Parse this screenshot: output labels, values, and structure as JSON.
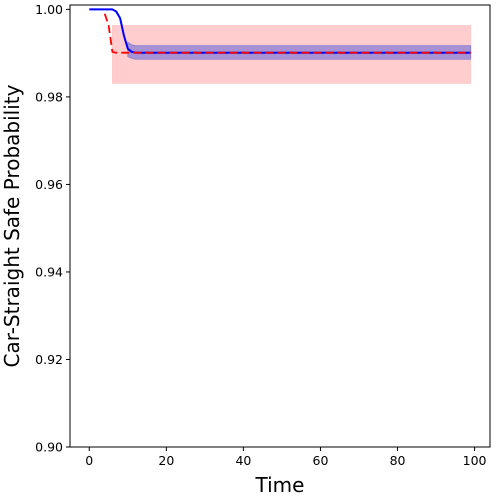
{
  "chart_data": {
    "type": "line",
    "title": "",
    "xlabel": "Time",
    "ylabel": "Car-Straight Safe Probability",
    "xlim": [
      -5,
      104
    ],
    "ylim": [
      0.9,
      1.001
    ],
    "xticks": [
      0,
      20,
      40,
      60,
      80,
      100
    ],
    "yticks": [
      0.9,
      0.92,
      0.94,
      0.96,
      0.98,
      1.0
    ],
    "xtick_labels": [
      "0",
      "20",
      "40",
      "60",
      "80",
      "100"
    ],
    "ytick_labels": [
      "0.90",
      "0.92",
      "0.94",
      "0.96",
      "0.98",
      "1.00"
    ],
    "grid": false,
    "series": [
      {
        "color": "#0000ff",
        "style": "solid",
        "x": [
          0,
          2,
          4,
          5,
          6,
          7,
          8,
          9,
          10,
          11,
          12,
          14,
          20,
          40,
          60,
          80,
          99
        ],
        "values": [
          1.0,
          1.0,
          1.0,
          1.0,
          1.0,
          0.9995,
          0.998,
          0.994,
          0.991,
          0.9903,
          0.9901,
          0.9901,
          0.9901,
          0.9901,
          0.9901,
          0.9901,
          0.9901
        ],
        "band_lower": [
          null,
          null,
          null,
          null,
          null,
          null,
          null,
          null,
          0.9892,
          0.9888,
          0.9886,
          0.9886,
          0.9886,
          0.9886,
          0.9886,
          0.9886,
          0.9886
        ],
        "band_upper": [
          null,
          null,
          null,
          null,
          null,
          null,
          null,
          null,
          0.9925,
          0.9919,
          0.9917,
          0.9917,
          0.9917,
          0.9917,
          0.9917,
          0.9917,
          0.9917
        ],
        "band_color": "#8a7fd4"
      },
      {
        "color": "#ff0000",
        "style": "dashed",
        "x": [
          4,
          5,
          6,
          7,
          8,
          10,
          20,
          40,
          60,
          80,
          99
        ],
        "values": [
          0.999,
          0.9965,
          0.9903,
          0.9901,
          0.9901,
          0.9901,
          0.9901,
          0.9901,
          0.9901,
          0.9901,
          0.9901
        ],
        "band_lower": [
          null,
          null,
          0.9831,
          0.9831,
          0.9831,
          0.9831,
          0.9831,
          0.9831,
          0.9831,
          0.9831,
          0.9831
        ],
        "band_upper": [
          null,
          null,
          0.9963,
          0.9963,
          0.9963,
          0.9963,
          0.9963,
          0.9963,
          0.9963,
          0.9963,
          0.9963
        ],
        "band_color": "#ffc8c8"
      }
    ]
  }
}
